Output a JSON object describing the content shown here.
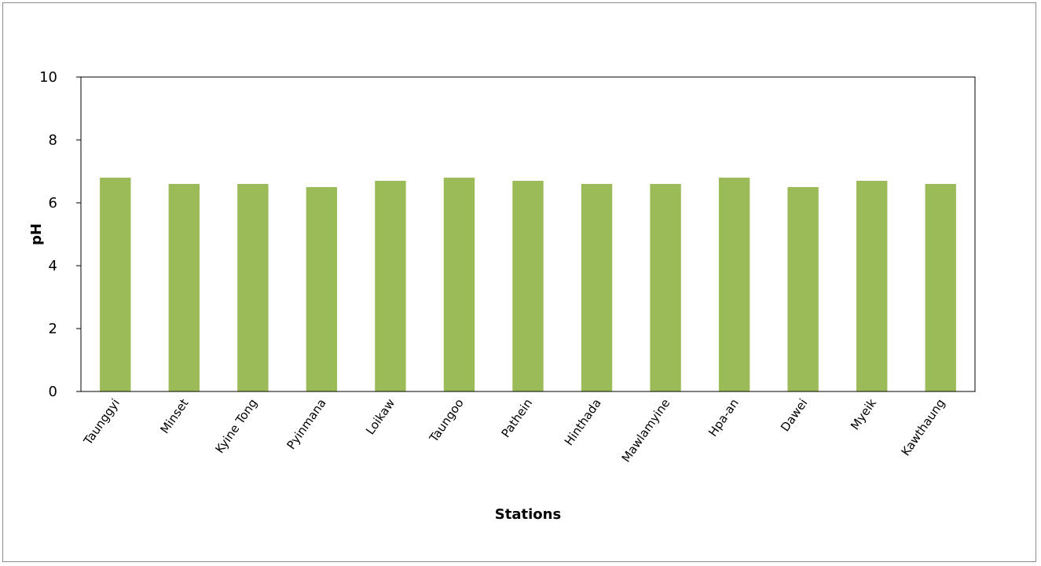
{
  "chart_data": {
    "type": "bar",
    "title": "",
    "xlabel": "Stations",
    "ylabel": "pH",
    "categories": [
      "Taunggyi",
      "Minset",
      "Kyine Tong",
      "Pyinmana",
      "Loikaw",
      "Taungoo",
      "Pathein",
      "Hinthada",
      "Mawlamyine",
      "Hpa-an",
      "Dawei",
      "Myeik",
      "Kawthaung"
    ],
    "values": [
      6.8,
      6.6,
      6.6,
      6.5,
      6.7,
      6.8,
      6.7,
      6.6,
      6.6,
      6.8,
      6.5,
      6.7,
      6.6
    ],
    "ylim": [
      0,
      10
    ],
    "yticks": [
      0,
      2,
      4,
      6,
      8,
      10
    ],
    "grid": false,
    "legend": "none",
    "colors": {
      "bar": "#9bbb59",
      "axis": "#000000",
      "frame": "#8c8c8c"
    }
  }
}
